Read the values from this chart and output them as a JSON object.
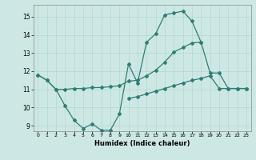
{
  "background_color": "#cde8e4",
  "grid_color": "#b0d8d4",
  "line_color": "#2e7d74",
  "xlim": [
    -0.5,
    23.5
  ],
  "ylim": [
    8.7,
    15.65
  ],
  "yticks": [
    9,
    10,
    11,
    12,
    13,
    14,
    15
  ],
  "xticks": [
    0,
    1,
    2,
    3,
    4,
    5,
    6,
    7,
    8,
    9,
    10,
    11,
    12,
    13,
    14,
    15,
    16,
    17,
    18,
    19,
    20,
    21,
    22,
    23
  ],
  "xlabel": "Humidex (Indice chaleur)",
  "curve1_x": [
    0,
    1,
    2,
    3,
    4,
    5,
    6,
    7,
    8,
    9,
    10,
    11,
    12,
    13,
    14,
    15,
    16,
    17,
    18
  ],
  "curve1_y": [
    11.8,
    11.5,
    11.0,
    10.1,
    9.3,
    8.85,
    9.1,
    8.75,
    8.75,
    9.65,
    12.4,
    11.35,
    13.6,
    14.05,
    15.1,
    15.2,
    15.3,
    14.75,
    13.6
  ],
  "curve2_x": [
    0,
    1,
    2,
    3,
    4,
    5,
    6,
    7,
    8,
    9,
    10,
    11,
    12,
    13,
    14,
    15,
    16,
    17,
    18,
    19,
    20,
    21,
    22,
    23
  ],
  "curve2_y": [
    11.8,
    11.5,
    11.0,
    11.0,
    11.05,
    11.05,
    11.1,
    11.1,
    11.15,
    11.2,
    11.45,
    11.5,
    11.75,
    12.05,
    12.5,
    13.05,
    13.3,
    13.55,
    13.6,
    11.9,
    11.9,
    11.05,
    11.05,
    11.05
  ],
  "curve3_x": [
    10,
    11,
    12,
    13,
    14,
    15,
    16,
    17,
    18,
    19,
    20,
    21,
    22,
    23
  ],
  "curve3_y": [
    10.5,
    10.6,
    10.75,
    10.9,
    11.05,
    11.2,
    11.35,
    11.5,
    11.6,
    11.75,
    11.05,
    11.05,
    11.05,
    11.05
  ]
}
